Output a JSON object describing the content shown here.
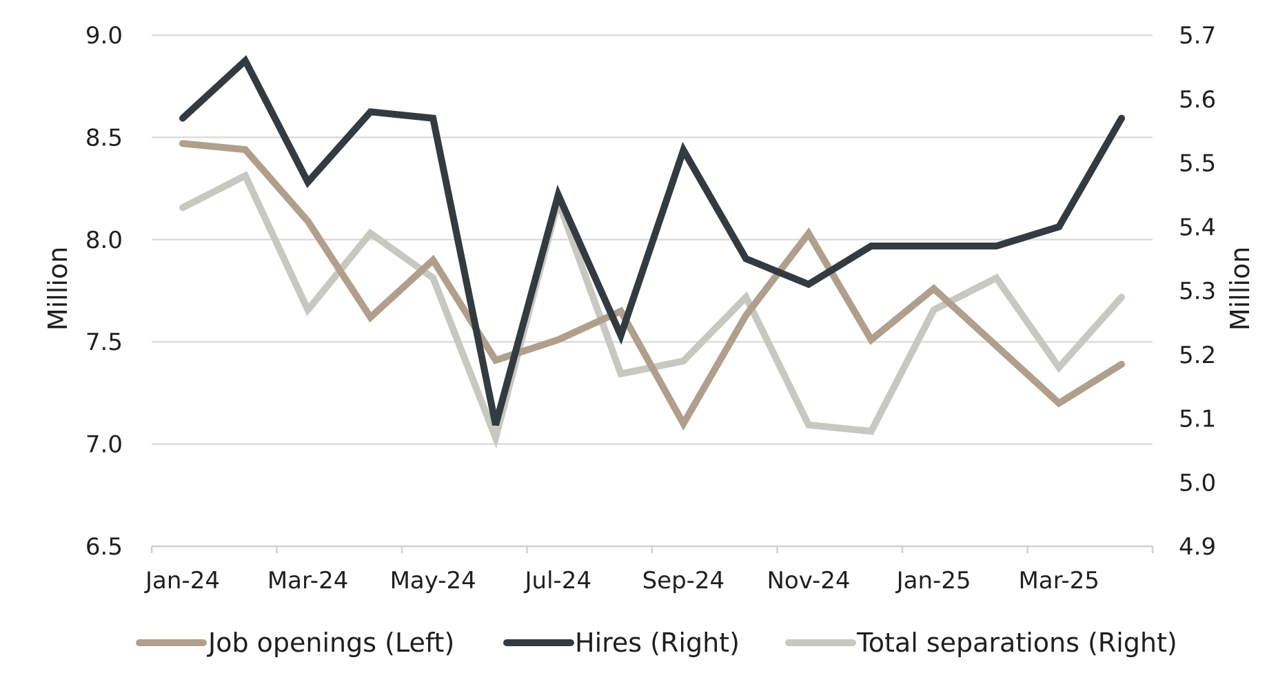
{
  "chart_data": {
    "type": "line",
    "categories": [
      "Jan-24",
      "Feb-24",
      "Mar-24",
      "Apr-24",
      "May-24",
      "Jun-24",
      "Jul-24",
      "Aug-24",
      "Sep-24",
      "Oct-24",
      "Nov-24",
      "Dec-24",
      "Jan-25",
      "Feb-25",
      "Mar-25",
      "Apr-25"
    ],
    "x_tick_labels": [
      "Jan-24",
      "Mar-24",
      "May-24",
      "Jul-24",
      "Sep-24",
      "Nov-24",
      "Jan-25",
      "Mar-25"
    ],
    "left_axis": {
      "label": "Million",
      "ylim": [
        6.5,
        9.0
      ],
      "ticks": [
        "9.0",
        "8.5",
        "8.0",
        "7.5",
        "7.0",
        "6.5"
      ]
    },
    "right_axis": {
      "label": "Million",
      "ylim": [
        4.9,
        5.7
      ],
      "ticks": [
        "5.7",
        "5.6",
        "5.5",
        "5.4",
        "5.3",
        "5.2",
        "5.1",
        "5.0",
        "4.9"
      ]
    },
    "grid": true,
    "legend_position": "bottom",
    "series": [
      {
        "name": "Job openings (Left)",
        "axis": "left",
        "color": "#b09f8c",
        "values": [
          8.47,
          8.44,
          8.09,
          7.62,
          7.9,
          7.41,
          7.51,
          7.65,
          7.1,
          7.63,
          8.03,
          7.51,
          7.76,
          7.48,
          7.2,
          7.39
        ]
      },
      {
        "name": "Hires (Right)",
        "axis": "right",
        "color": "#333a40",
        "values": [
          5.57,
          5.66,
          5.47,
          5.58,
          5.57,
          5.09,
          5.45,
          5.23,
          5.52,
          5.35,
          5.31,
          5.37,
          5.37,
          5.37,
          5.4,
          5.57
        ]
      },
      {
        "name": "Total separations (Right)",
        "axis": "right",
        "color": "#c8c8c2",
        "values": [
          5.43,
          5.48,
          5.27,
          5.39,
          5.32,
          5.07,
          5.44,
          5.17,
          5.19,
          5.29,
          5.09,
          5.08,
          5.27,
          5.32,
          5.18,
          5.29
        ]
      }
    ]
  }
}
